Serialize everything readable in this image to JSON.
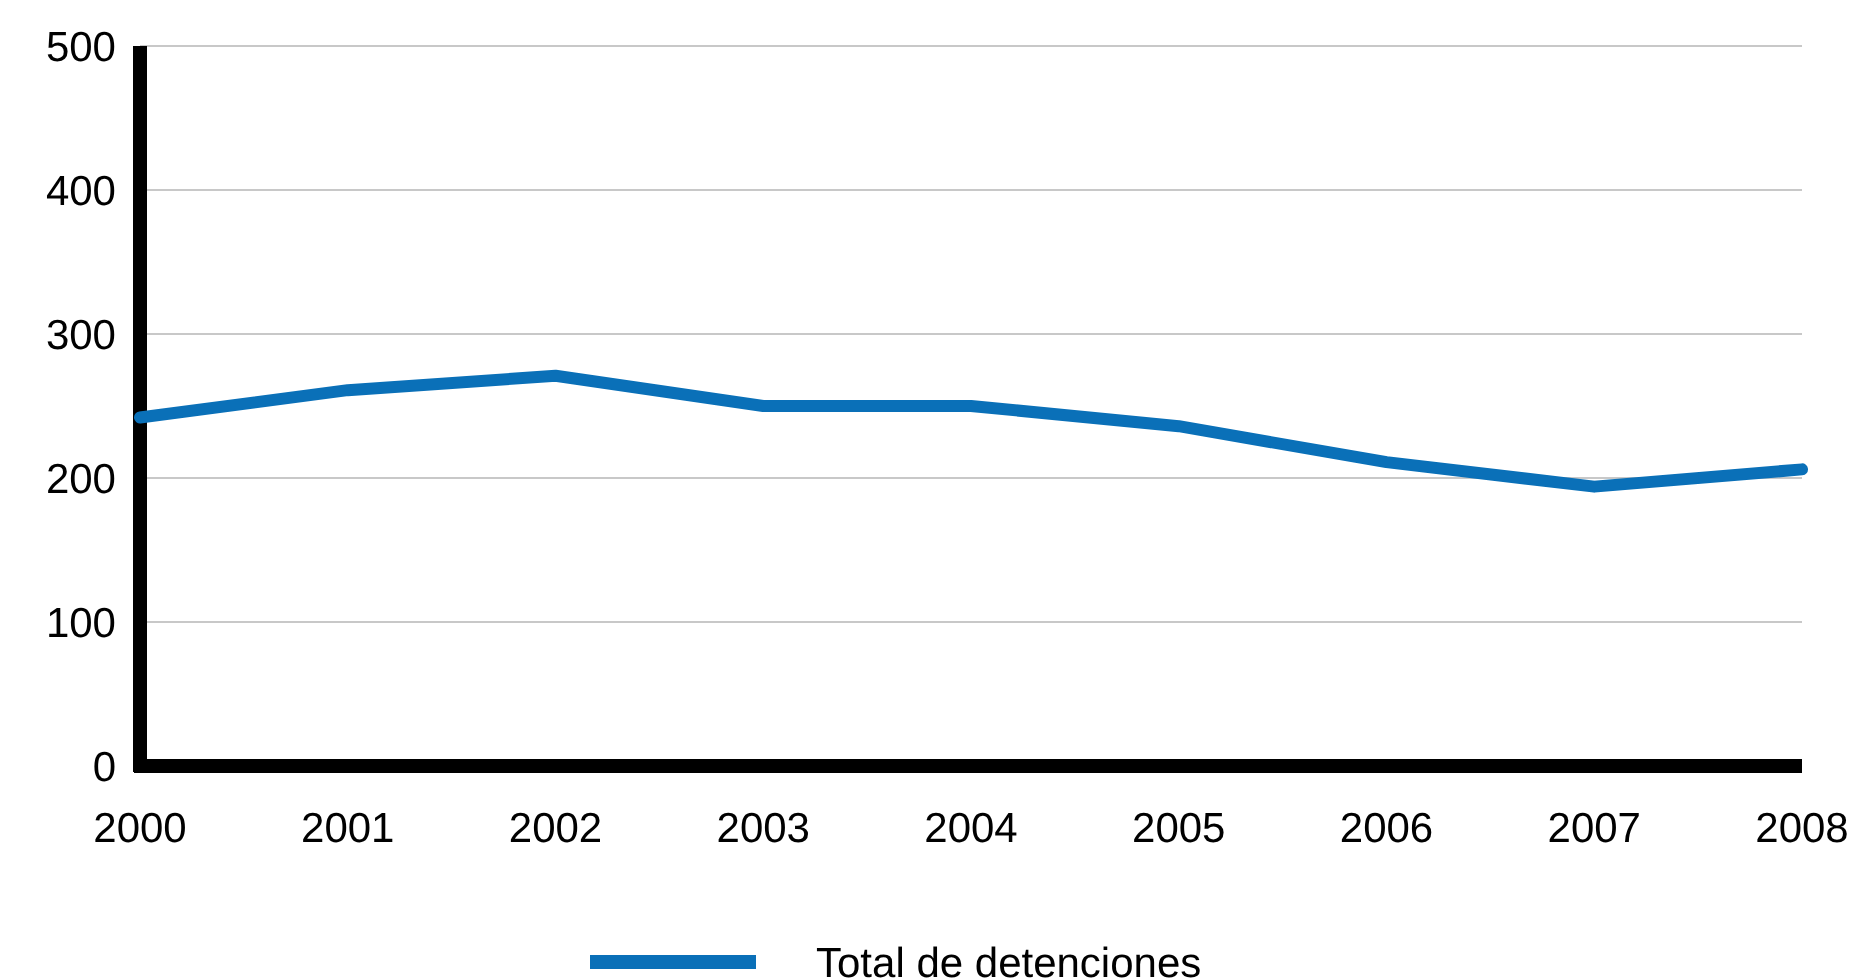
{
  "chart_data": {
    "type": "line",
    "x": [
      2000,
      2001,
      2002,
      2003,
      2004,
      2005,
      2006,
      2007,
      2008
    ],
    "series": [
      {
        "name": "Total de detenciones",
        "color": "#0a70b8",
        "values": [
          242,
          261,
          271,
          250,
          250,
          236,
          211,
          194,
          206
        ]
      }
    ],
    "xlim": [
      2000,
      2008
    ],
    "xticks": [
      2000,
      2001,
      2002,
      2003,
      2004,
      2005,
      2006,
      2007,
      2008
    ],
    "ylim": [
      0,
      500
    ],
    "yticks": [
      0,
      100,
      200,
      300,
      400,
      500
    ],
    "grid": "y",
    "legend": "bottom",
    "marker": "none",
    "line_style": "solid"
  }
}
